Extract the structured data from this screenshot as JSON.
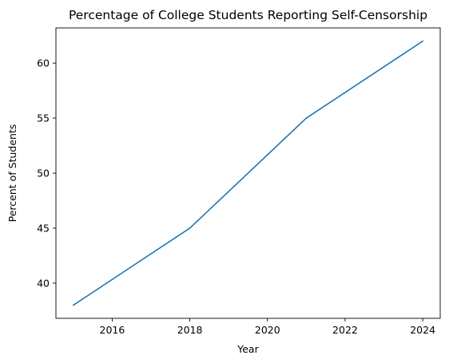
{
  "chart_data": {
    "type": "line",
    "title": "Percentage of College Students Reporting Self-Censorship",
    "xlabel": "Year",
    "ylabel": "Percent of Students",
    "x": [
      2015,
      2018,
      2021,
      2024
    ],
    "series": [
      {
        "values": [
          38,
          45,
          55,
          62
        ],
        "color": "#1f77b4"
      }
    ],
    "xlim": [
      2014.55,
      2024.45
    ],
    "ylim": [
      36.8,
      63.2
    ],
    "xticks": [
      2016,
      2018,
      2020,
      2022,
      2024
    ],
    "yticks": [
      40,
      45,
      50,
      55,
      60
    ],
    "grid": false,
    "legend": "none"
  }
}
